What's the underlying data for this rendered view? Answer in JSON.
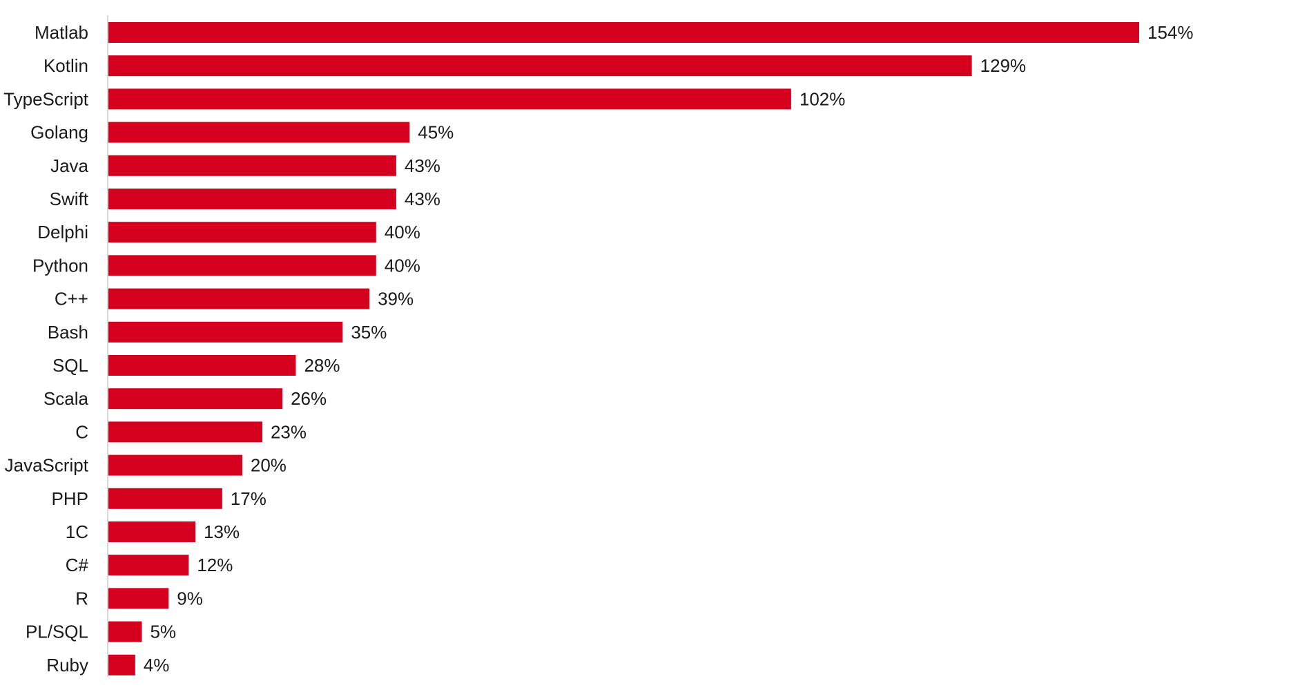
{
  "chart_data": {
    "type": "bar",
    "orientation": "horizontal",
    "categories": [
      "Matlab",
      "Kotlin",
      "TypeScript",
      "Golang",
      "Java",
      "Swift",
      "Delphi",
      "Python",
      "C++",
      "Bash",
      "SQL",
      "Scala",
      "C",
      "JavaScript",
      "PHP",
      "1C",
      "C#",
      "R",
      "PL/SQL",
      "Ruby"
    ],
    "values": [
      154,
      129,
      102,
      45,
      43,
      43,
      40,
      40,
      39,
      35,
      28,
      26,
      23,
      20,
      17,
      13,
      12,
      9,
      5,
      4
    ],
    "value_labels": [
      "154%",
      "129%",
      "102%",
      "45%",
      "43%",
      "43%",
      "40%",
      "40%",
      "39%",
      "35%",
      "28%",
      "26%",
      "23%",
      "20%",
      "17%",
      "13%",
      "12%",
      "9%",
      "5%",
      "4%"
    ],
    "title": "",
    "xlabel": "",
    "ylabel": "",
    "xlim": [
      0,
      154
    ],
    "grid": false,
    "legend": "none",
    "colors": {
      "bar": "#d4001d",
      "axis": "#cccccc",
      "text": "#1a1a1a"
    }
  }
}
